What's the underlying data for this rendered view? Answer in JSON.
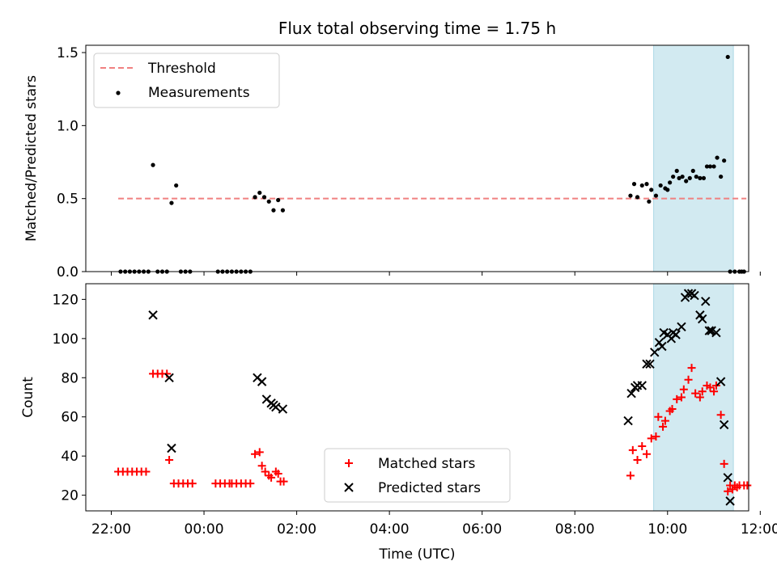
{
  "chart_data": [
    {
      "type": "scatter",
      "title": "Flux total observing time = 1.75 h",
      "xlabel": "",
      "ylabel": "Matched/Predicted stars",
      "x_unit": "hours since 00:00 UTC (negative = previous day)",
      "xlim": [
        -2.55,
        11.75
      ],
      "ylim": [
        0.0,
        1.55
      ],
      "yticks": [
        "0.0",
        "0.5",
        "1.0",
        "1.5"
      ],
      "grid": false,
      "legend_position": "upper-left",
      "legend": [
        "Threshold",
        "Measurements"
      ],
      "threshold": {
        "name": "Threshold",
        "value": 0.5,
        "x_range": [
          -1.85,
          11.7
        ],
        "color": "#f08080",
        "style": "dashed"
      },
      "highlight_span": {
        "x_range": [
          9.7,
          11.42
        ],
        "color": "#add8e6"
      },
      "series": [
        {
          "name": "Measurements",
          "color": "#000000",
          "x": [
            -1.8,
            -1.7,
            -1.6,
            -1.5,
            -1.4,
            -1.3,
            -1.2,
            -1.1,
            -1.0,
            -0.9,
            -0.8,
            -0.7,
            -0.6,
            -0.5,
            -0.4,
            -0.3,
            0.3,
            0.4,
            0.5,
            0.6,
            0.7,
            0.8,
            0.9,
            1.0,
            1.1,
            1.2,
            1.3,
            1.4,
            1.5,
            1.6,
            1.7,
            9.2,
            9.28,
            9.35,
            9.45,
            9.55,
            9.6,
            9.65,
            9.75,
            9.85,
            9.95,
            10.0,
            10.05,
            10.12,
            10.2,
            10.25,
            10.32,
            10.4,
            10.48,
            10.55,
            10.62,
            10.7,
            10.78,
            10.85,
            10.92,
            11.0,
            11.07,
            11.15,
            11.22,
            11.3,
            11.35,
            11.45,
            11.55,
            11.6,
            11.65
          ],
          "y": [
            0.0,
            0.0,
            0.0,
            0.0,
            0.0,
            0.0,
            0.0,
            0.73,
            0.0,
            0.0,
            0.0,
            0.47,
            0.59,
            0.0,
            0.0,
            0.0,
            0.0,
            0.0,
            0.0,
            0.0,
            0.0,
            0.0,
            0.0,
            0.0,
            0.51,
            0.54,
            0.51,
            0.48,
            0.42,
            0.49,
            0.42,
            0.52,
            0.6,
            0.51,
            0.59,
            0.6,
            0.48,
            0.56,
            0.52,
            0.59,
            0.57,
            0.56,
            0.61,
            0.65,
            0.69,
            0.64,
            0.65,
            0.62,
            0.64,
            0.69,
            0.65,
            0.64,
            0.64,
            0.72,
            0.72,
            0.72,
            0.78,
            0.65,
            0.76,
            1.47,
            0.0,
            0.0,
            0.0,
            0.0,
            0.0
          ]
        }
      ]
    },
    {
      "type": "scatter",
      "title": "",
      "xlabel": "Time (UTC)",
      "ylabel": "Count",
      "x_unit": "hours since 00:00 UTC (negative = previous day)",
      "xlim": [
        -2.55,
        11.75
      ],
      "ylim": [
        12,
        128
      ],
      "yticks": [
        "20",
        "40",
        "60",
        "80",
        "100",
        "120"
      ],
      "xticks": [
        {
          "value": -2,
          "label": "22:00"
        },
        {
          "value": 0,
          "label": "00:00"
        },
        {
          "value": 2,
          "label": "02:00"
        },
        {
          "value": 4,
          "label": "04:00"
        },
        {
          "value": 6,
          "label": "06:00"
        },
        {
          "value": 8,
          "label": "08:00"
        },
        {
          "value": 10,
          "label": "10:00"
        },
        {
          "value": 12,
          "label": "12:00"
        }
      ],
      "grid": false,
      "legend_position": "lower-center",
      "legend": [
        "Matched stars",
        "Predicted stars"
      ],
      "highlight_span": {
        "x_range": [
          9.7,
          11.42
        ],
        "color": "#add8e6"
      },
      "series": [
        {
          "name": "Matched stars",
          "marker": "plus",
          "color": "#ff0000",
          "x": [
            -1.85,
            -1.75,
            -1.65,
            -1.55,
            -1.45,
            -1.35,
            -1.25,
            -1.1,
            -1.0,
            -0.9,
            -0.8,
            -0.75,
            -0.65,
            -0.55,
            -0.45,
            -0.35,
            -0.25,
            0.25,
            0.35,
            0.45,
            0.55,
            0.6,
            0.7,
            0.8,
            0.9,
            1.0,
            1.1,
            1.2,
            1.25,
            1.32,
            1.4,
            1.45,
            1.55,
            1.6,
            1.65,
            1.72,
            9.2,
            9.25,
            9.35,
            9.45,
            9.55,
            9.65,
            9.75,
            9.8,
            9.9,
            9.95,
            10.05,
            10.1,
            10.2,
            10.3,
            10.35,
            10.45,
            10.52,
            10.6,
            10.7,
            10.75,
            10.85,
            10.92,
            11.0,
            11.05,
            11.15,
            11.22,
            11.3,
            11.35,
            11.4,
            11.45,
            11.5,
            11.55,
            11.65,
            11.72
          ],
          "y": [
            32,
            32,
            32,
            32,
            32,
            32,
            32,
            82,
            82,
            82,
            82,
            38,
            26,
            26,
            26,
            26,
            26,
            26,
            26,
            26,
            26,
            26,
            26,
            26,
            26,
            26,
            41,
            42,
            35,
            32,
            30,
            29,
            32,
            31,
            27,
            27,
            30,
            43,
            38,
            45,
            41,
            49,
            50,
            60,
            55,
            58,
            63,
            64,
            69,
            70,
            74,
            79,
            85,
            72,
            70,
            73,
            76,
            75,
            73,
            76,
            61,
            36,
            22,
            25,
            23,
            25,
            24,
            25,
            25,
            25
          ]
        },
        {
          "name": "Predicted stars",
          "marker": "x",
          "color": "#000000",
          "x": [
            -1.1,
            -0.75,
            -0.7,
            1.15,
            1.25,
            1.35,
            1.45,
            1.5,
            1.55,
            1.7,
            9.15,
            9.22,
            9.3,
            9.35,
            9.45,
            9.55,
            9.62,
            9.72,
            9.82,
            9.88,
            9.92,
            10.0,
            10.08,
            10.12,
            10.18,
            10.3,
            10.38,
            10.45,
            10.52,
            10.58,
            10.7,
            10.75,
            10.82,
            10.9,
            10.95,
            11.05,
            11.15,
            11.22,
            11.3,
            11.35
          ],
          "y": [
            112,
            80,
            44,
            80,
            78,
            69,
            67,
            66,
            65,
            64,
            58,
            72,
            75,
            76,
            76,
            87,
            87,
            93,
            98,
            96,
            103,
            102,
            100,
            103,
            102,
            106,
            121,
            123,
            123,
            122,
            112,
            110,
            119,
            104,
            104,
            103,
            78,
            56,
            29,
            17
          ]
        }
      ]
    }
  ]
}
